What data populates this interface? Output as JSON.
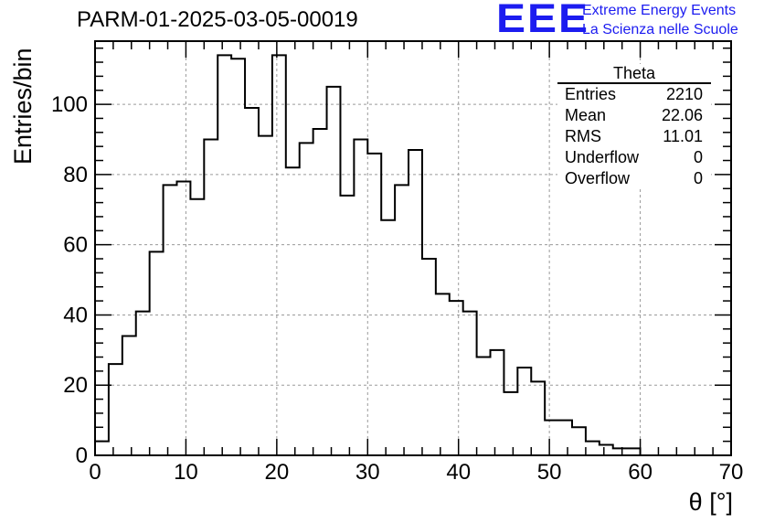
{
  "chart_data": {
    "type": "bar",
    "title": "PARM-01-2025-03-05-00019",
    "xlabel": "θ [°]",
    "ylabel": "Entries/bin",
    "xlim": [
      0,
      70
    ],
    "ylim": [
      0,
      118
    ],
    "bin_width": 1.5,
    "x_ticks": [
      "0",
      "10",
      "20",
      "30",
      "40",
      "50",
      "60",
      "70"
    ],
    "y_ticks": [
      "0",
      "20",
      "40",
      "60",
      "80",
      "100"
    ],
    "x_tick_values": [
      0,
      10,
      20,
      30,
      40,
      50,
      60,
      70
    ],
    "y_tick_values": [
      0,
      20,
      40,
      60,
      80,
      100
    ],
    "grid": true,
    "bin_edges": [
      0,
      1.5,
      3,
      4.5,
      6,
      7.5,
      9,
      10.5,
      12,
      13.5,
      15,
      16.5,
      18,
      19.5,
      21,
      22.5,
      24,
      25.5,
      27,
      28.5,
      30,
      31.5,
      33,
      34.5,
      36,
      37.5,
      39,
      40.5,
      42,
      43.5,
      45,
      46.5,
      48,
      49.5,
      51,
      52.5,
      54,
      55.5,
      57,
      58.5,
      60,
      61.5,
      63,
      64.5,
      66,
      67.5,
      69,
      70
    ],
    "values": [
      4,
      26,
      34,
      41,
      58,
      77,
      78,
      73,
      90,
      114,
      113,
      99,
      91,
      114,
      82,
      89,
      93,
      105,
      74,
      90,
      86,
      67,
      77,
      87,
      56,
      46,
      44,
      41,
      28,
      30,
      18,
      25,
      21,
      10,
      10,
      8,
      4,
      3,
      2,
      2,
      0,
      0,
      0,
      0,
      0,
      0,
      0
    ],
    "stats_box": {
      "title": "Theta",
      "rows": [
        {
          "label": "Entries",
          "value": "2210"
        },
        {
          "label": "Mean",
          "value": "22.06"
        },
        {
          "label": "RMS",
          "value": "11.01"
        },
        {
          "label": "Underflow",
          "value": "0"
        },
        {
          "label": "Overflow",
          "value": "0"
        }
      ]
    }
  },
  "logo": {
    "mark": "EEE",
    "line1": "Extreme Energy Events",
    "line2": "La Scienza nelle Scuole",
    "color": "#1c1cf0"
  }
}
